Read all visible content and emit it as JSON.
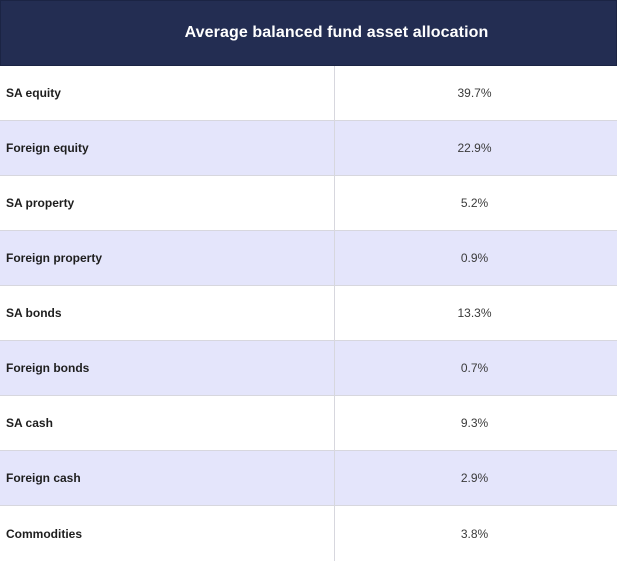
{
  "chart_data": {
    "type": "table",
    "title": "Average balanced fund asset allocation",
    "rows": [
      {
        "label": "SA equity",
        "value": "39.7%"
      },
      {
        "label": "Foreign equity",
        "value": "22.9%"
      },
      {
        "label": "SA property",
        "value": "5.2%"
      },
      {
        "label": "Foreign property",
        "value": "0.9%"
      },
      {
        "label": "SA bonds",
        "value": "13.3%"
      },
      {
        "label": "Foreign bonds",
        "value": "0.7%"
      },
      {
        "label": "SA cash",
        "value": "9.3%"
      },
      {
        "label": "Foreign cash",
        "value": "2.9%"
      },
      {
        "label": "Commodities",
        "value": "3.8%"
      }
    ]
  },
  "colors": {
    "header_background": "#232d52",
    "header_text": "#ffffff",
    "alternate_row": "#e4e5fb",
    "row": "#ffffff"
  }
}
